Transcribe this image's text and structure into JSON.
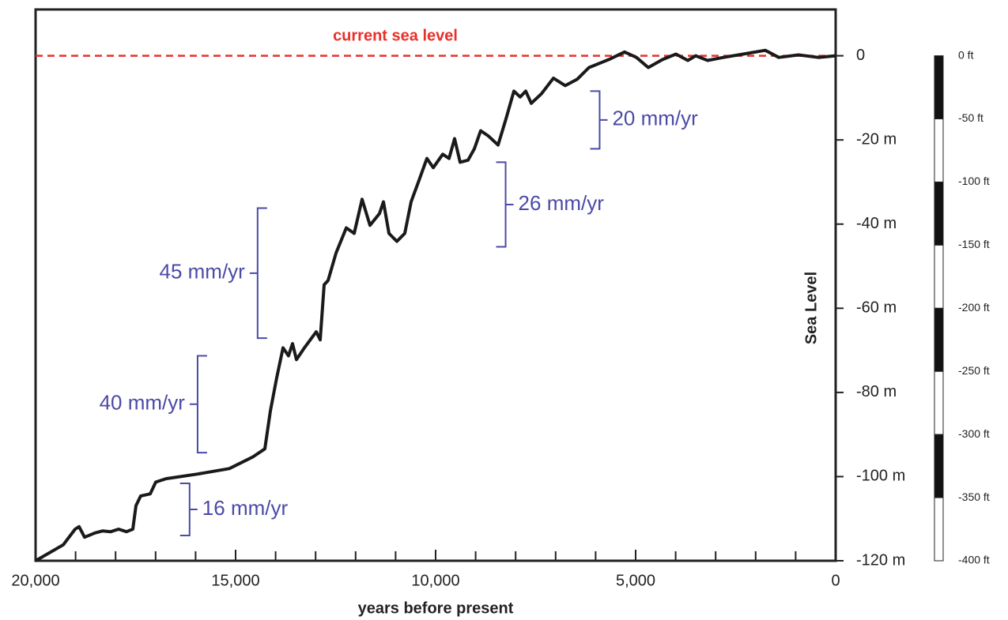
{
  "chart_data": {
    "type": "line",
    "x_label": "years before present",
    "y_label": "Sea Level",
    "color": "#1a1a1a",
    "xlim": [
      20000,
      0
    ],
    "ylim": [
      -120,
      11
    ],
    "xticks": [
      {
        "value": 20000,
        "label": "20,000"
      },
      {
        "value": 15000,
        "label": "15,000"
      },
      {
        "value": 10000,
        "label": "10,000"
      },
      {
        "value": 5000,
        "label": "5,000"
      },
      0
    ],
    "xminorticks": [
      19000,
      18000,
      17000,
      16000,
      14000,
      13000,
      12000,
      11000,
      9000,
      8000,
      7000,
      6000,
      4000,
      3000,
      2000,
      1000
    ],
    "yticks": [
      0,
      {
        "value": -20,
        "label": "-20 m"
      },
      {
        "value": -40,
        "label": "-40 m"
      },
      {
        "value": -60,
        "label": "-60 m"
      },
      {
        "value": -80,
        "label": "-80 m"
      },
      {
        "value": -100,
        "label": "-100 m"
      },
      {
        "value": -120,
        "label": "-120 m"
      }
    ],
    "x": [
      20000,
      19309,
      19012,
      18913,
      18775,
      18518,
      18320,
      18123,
      17925,
      17728,
      17570,
      17491,
      17372,
      17135,
      16997,
      16740,
      15949,
      15159,
      14566,
      14269,
      14131,
      13973,
      13815,
      13677,
      13578,
      13479,
      13281,
      12985,
      12886,
      12787,
      12688,
      12490,
      12233,
      12036,
      11838,
      11640,
      11403,
      11304,
      11166,
      10968,
      10771,
      10613,
      10415,
      10217,
      10059,
      9822,
      9664,
      9526,
      9387,
      9190,
      9031,
      8873,
      8675,
      8438,
      8241,
      8043,
      7885,
      7747,
      7609,
      7352,
      7055,
      6759,
      6462,
      6166,
      5672,
      5277,
      4980,
      4684,
      4328,
      3992,
      3696,
      3498,
      3202,
      2806,
      2312,
      1759,
      1423,
      929,
      435,
      0
    ],
    "values": [
      -120,
      -116.2,
      -112.5,
      -111.9,
      -114.4,
      -113.4,
      -112.9,
      -113.1,
      -112.5,
      -113.1,
      -112.5,
      -106.9,
      -104.6,
      -104.1,
      -101.3,
      -100.5,
      -99.4,
      -98.1,
      -95.3,
      -93.4,
      -84.4,
      -76.5,
      -69.4,
      -71.3,
      -68.4,
      -72.2,
      -69.4,
      -65.6,
      -67.5,
      -54.4,
      -53.4,
      -46.9,
      -40.9,
      -42.2,
      -34.1,
      -40.3,
      -37.5,
      -34.7,
      -42.2,
      -44.1,
      -42.2,
      -34.7,
      -29.6,
      -24.4,
      -26.6,
      -23.4,
      -24.4,
      -19.7,
      -25.3,
      -24.8,
      -22.1,
      -17.8,
      -19.1,
      -21.2,
      -15,
      -8.4,
      -9.8,
      -8.4,
      -11.3,
      -9,
      -5.3,
      -7.1,
      -5.6,
      -2.8,
      -0.9,
      0.9,
      -0.4,
      -2.8,
      -0.9,
      0.4,
      -1.1,
      0,
      -1.1,
      -0.4,
      0.4,
      1.3,
      -0.4,
      0.2,
      -0.4,
      0
    ],
    "reference_line": {
      "label": "current sea level",
      "y": 0,
      "color": "#e8302a"
    },
    "annotations": [
      {
        "text": "20 mm/yr",
        "x": 5900,
        "y_range": [
          -8.4,
          -22.1
        ],
        "side": "right"
      },
      {
        "text": "26 mm/yr",
        "x": 8250,
        "y_range": [
          -25.3,
          -45.4
        ],
        "side": "right"
      },
      {
        "text": "45 mm/yr",
        "x": 14450,
        "y_range": [
          -36.2,
          -67.1
        ],
        "side": "left"
      },
      {
        "text": "40 mm/yr",
        "x": 15950,
        "y_range": [
          -71.3,
          -94.3
        ],
        "side": "left"
      },
      {
        "text": "16 mm/yr",
        "x": 16150,
        "y_range": [
          -101.6,
          -114
        ],
        "side": "right"
      }
    ],
    "annotation_color": "#4a4aa8",
    "ft_scale": {
      "lim": [
        -400,
        0
      ],
      "colors": [
        "#111111",
        "#ffffff"
      ],
      "ticks": [
        {
          "value": 0,
          "label": "0 ft"
        },
        {
          "value": -50,
          "label": "-50 ft"
        },
        {
          "value": -100,
          "label": "-100 ft"
        },
        {
          "value": -150,
          "label": "-150 ft"
        },
        {
          "value": -200,
          "label": "-200 ft"
        },
        {
          "value": -250,
          "label": "-250 ft"
        },
        {
          "value": -300,
          "label": "-300 ft"
        },
        {
          "value": -350,
          "label": "-350 ft"
        },
        {
          "value": -400,
          "label": "-400 ft"
        }
      ]
    }
  }
}
